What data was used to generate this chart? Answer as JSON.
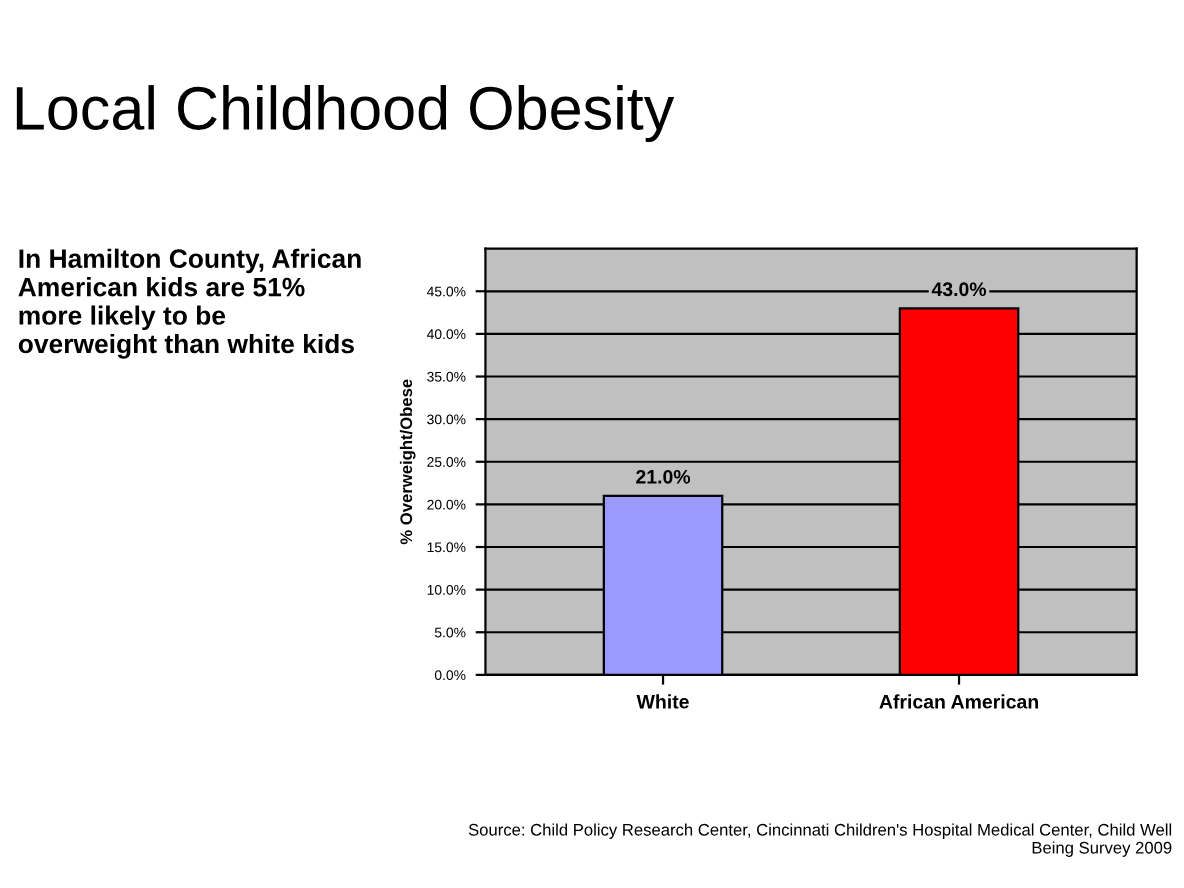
{
  "chart_data": {
    "type": "bar",
    "title": "Local Childhood Obesity",
    "ylabel": "% Overweight/Obese",
    "categories": [
      "White",
      "African American"
    ],
    "values": [
      21.0,
      43.0
    ],
    "colors": [
      "#9999ff",
      "#ff0000"
    ],
    "value_labels": [
      "21.0%",
      "43.0%"
    ],
    "ylim": [
      0,
      50
    ],
    "yticks": [
      {
        "value": 0,
        "label": "0.0%"
      },
      {
        "value": 5,
        "label": "5.0%"
      },
      {
        "value": 10,
        "label": "10.0%"
      },
      {
        "value": 15,
        "label": "15.0%"
      },
      {
        "value": 20,
        "label": "20.0%"
      },
      {
        "value": 25,
        "label": "25.0%"
      },
      {
        "value": 30,
        "label": "30.0%"
      },
      {
        "value": 35,
        "label": "35.0%"
      },
      {
        "value": 40,
        "label": "40.0%"
      },
      {
        "value": 45,
        "label": "45.0%"
      }
    ],
    "grid": "y",
    "annotations": [
      "In Hamilton County, African American kids are 51% more likely to be overweight than white kids",
      "Source: Child Policy Research Center, Cincinnati Children's Hospital Medical Center, Child Well Being Survey 2009"
    ]
  }
}
